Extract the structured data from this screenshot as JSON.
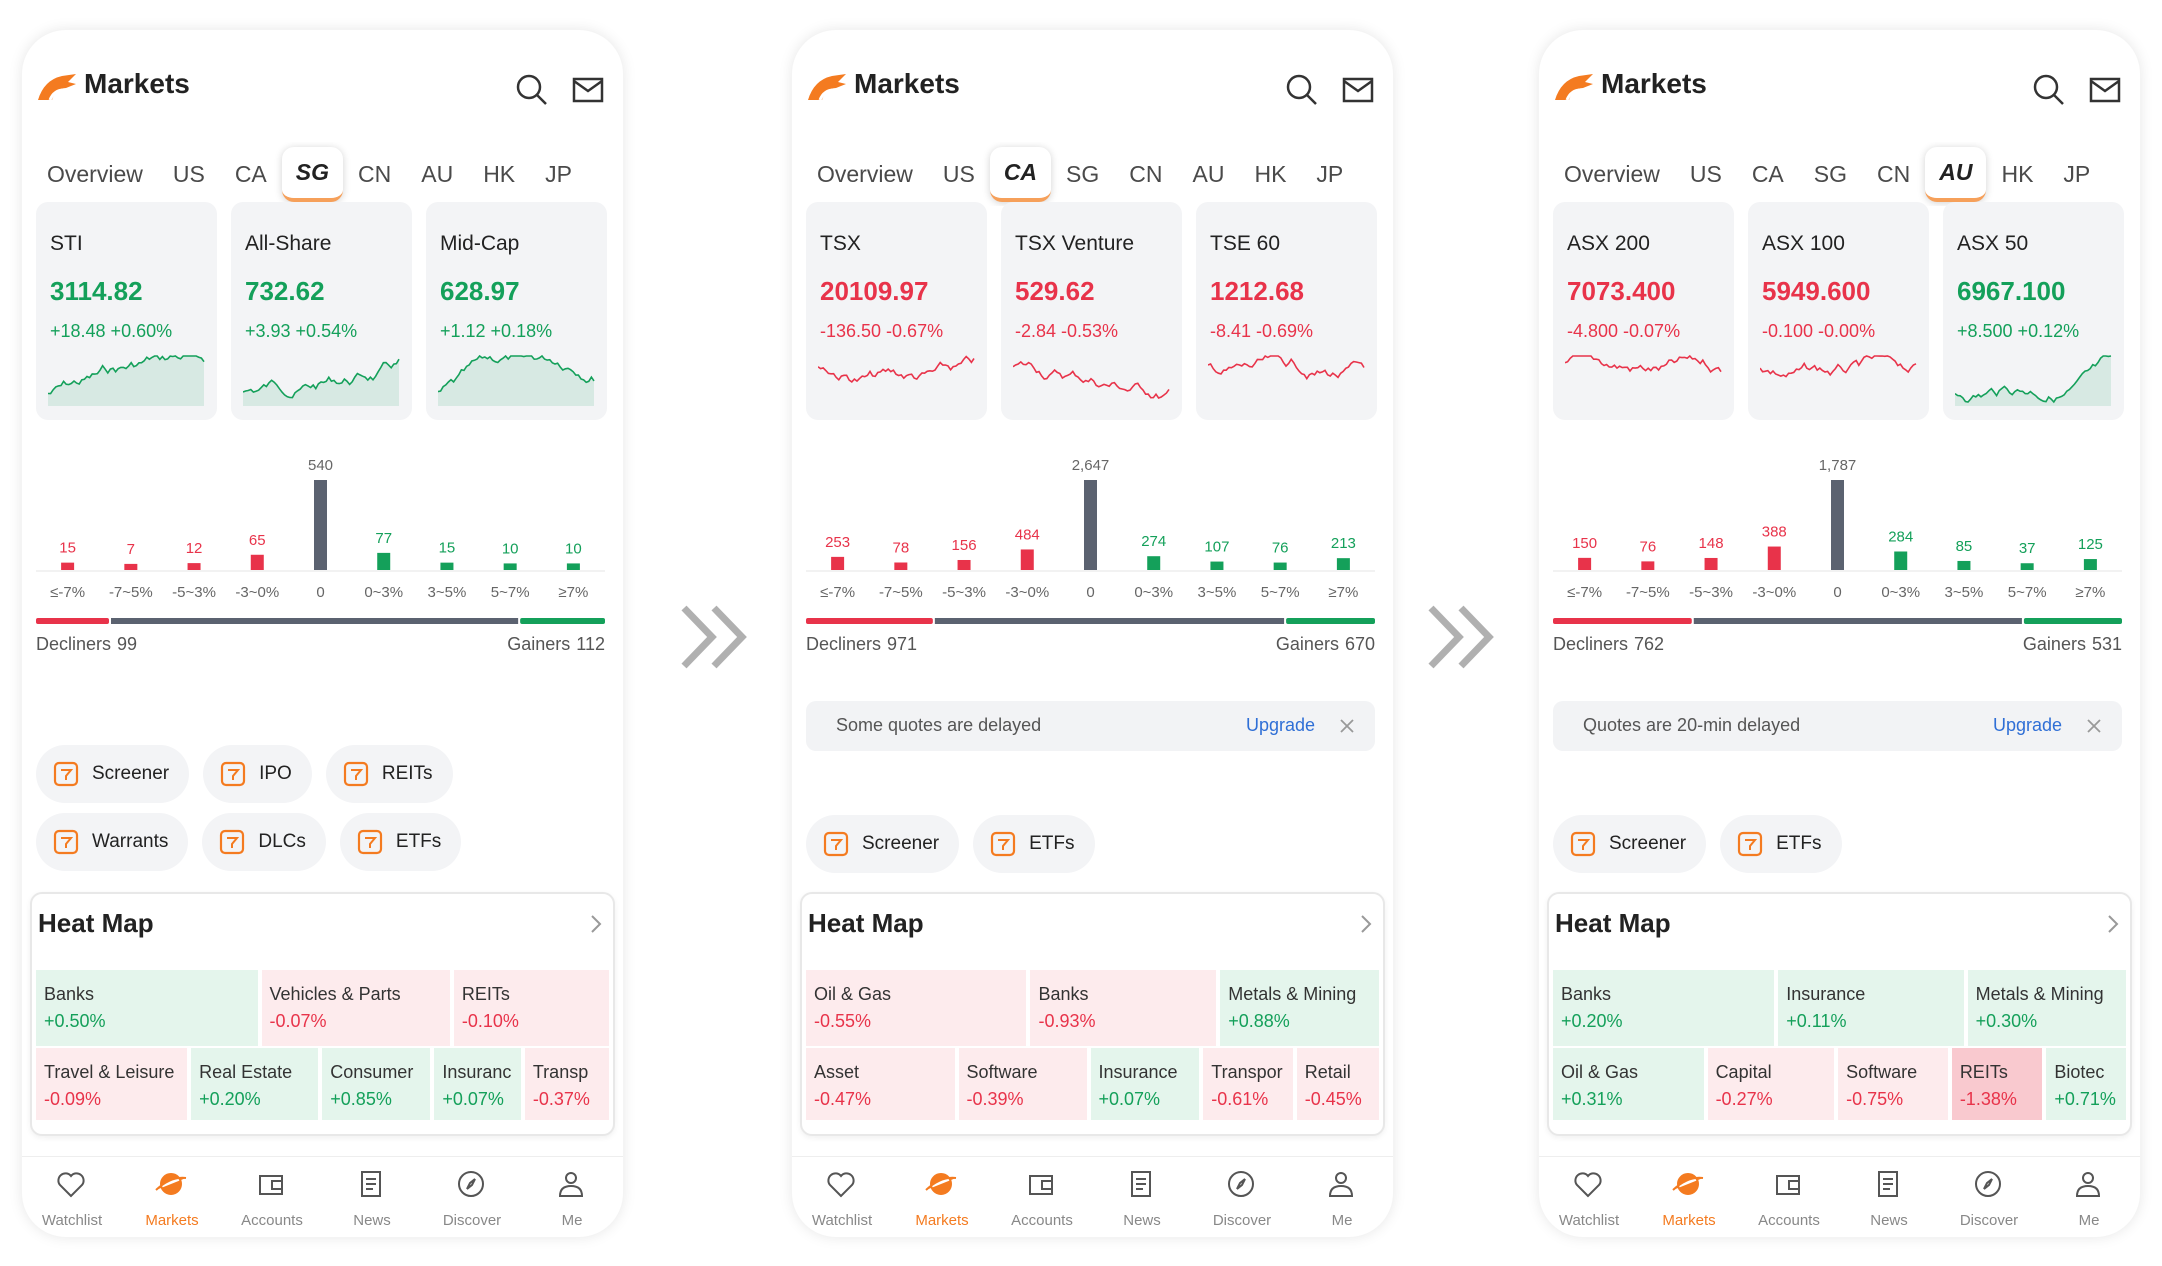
{
  "screens": [
    {
      "title": "Markets",
      "tabs": [
        "Overview",
        "US",
        "CA",
        "SG",
        "CN",
        "AU",
        "HK",
        "JP"
      ],
      "active_tab": 3,
      "indices": [
        {
          "name": "STI",
          "value": "3114.82",
          "change": "+18.48 +0.60%"
        },
        {
          "name": "All-Share",
          "value": "732.62",
          "change": "+3.93 +0.54%"
        },
        {
          "name": "Mid-Cap",
          "value": "628.97",
          "change": "+1.12 +0.18%"
        }
      ],
      "distribution": {
        "categories": [
          "≤-7%",
          "-7~5%",
          "-5~3%",
          "-3~0%",
          "0",
          "0~3%",
          "3~5%",
          "5~7%",
          "≥7%"
        ],
        "counts": [
          15,
          7,
          12,
          65,
          540,
          77,
          15,
          10,
          10
        ]
      },
      "decliners": {
        "label": "Decliners",
        "count": 99
      },
      "gainers": {
        "label": "Gainers",
        "count": 112
      },
      "tools": [
        "Screener",
        "IPO",
        "REITs",
        "Warrants",
        "DLCs",
        "ETFs"
      ],
      "heat_map": {
        "title": "Heat Map",
        "rows": [
          [
            {
              "name": "Banks",
              "change": "+0.50%"
            },
            {
              "name": "Vehicles & Parts",
              "change": "-0.07%"
            },
            {
              "name": "REITs",
              "change": "-0.10%"
            }
          ],
          [
            {
              "name": "Travel & Leisure",
              "change": "-0.09%"
            },
            {
              "name": "Real Estate",
              "change": "+0.20%"
            },
            {
              "name": "Consumer",
              "change": "+0.85%"
            },
            {
              "name": "Insuranc",
              "change": "+0.07%"
            },
            {
              "name": "Transp",
              "change": "-0.37%"
            }
          ]
        ]
      },
      "nav": [
        "Watchlist",
        "Markets",
        "Accounts",
        "News",
        "Discover",
        "Me"
      ],
      "active_nav": 1
    },
    {
      "title": "Markets",
      "tabs": [
        "Overview",
        "US",
        "CA",
        "SG",
        "CN",
        "AU",
        "HK",
        "JP"
      ],
      "active_tab": 2,
      "indices": [
        {
          "name": "TSX",
          "value": "20109.97",
          "change": "-136.50 -0.67%"
        },
        {
          "name": "TSX Venture",
          "value": "529.62",
          "change": "-2.84 -0.53%"
        },
        {
          "name": "TSE 60",
          "value": "1212.68",
          "change": "-8.41 -0.69%"
        }
      ],
      "distribution": {
        "categories": [
          "≤-7%",
          "-7~5%",
          "-5~3%",
          "-3~0%",
          "0",
          "0~3%",
          "3~5%",
          "5~7%",
          "≥7%"
        ],
        "counts": [
          253,
          78,
          156,
          484,
          {
            "value": 2647,
            "label": "2,647"
          },
          274,
          107,
          76,
          213
        ]
      },
      "decliners": {
        "label": "Decliners",
        "count": 971
      },
      "gainers": {
        "label": "Gainers",
        "count": 670
      },
      "notice": {
        "text": "Some quotes are delayed",
        "action": "Upgrade"
      },
      "tools": [
        "Screener",
        "ETFs"
      ],
      "heat_map": {
        "title": "Heat Map",
        "rows": [
          [
            {
              "name": "Oil & Gas",
              "change": "-0.55%"
            },
            {
              "name": "Banks",
              "change": "-0.93%"
            },
            {
              "name": "Metals & Mining",
              "change": "+0.88%"
            }
          ],
          [
            {
              "name": "Asset",
              "change": "-0.47%"
            },
            {
              "name": "Software",
              "change": "-0.39%"
            },
            {
              "name": "Insurance",
              "change": "+0.07%"
            },
            {
              "name": "Transpor",
              "change": "-0.61%"
            },
            {
              "name": "Retail",
              "change": "-0.45%"
            }
          ]
        ]
      },
      "nav": [
        "Watchlist",
        "Markets",
        "Accounts",
        "News",
        "Discover",
        "Me"
      ],
      "active_nav": 1
    },
    {
      "title": "Markets",
      "tabs": [
        "Overview",
        "US",
        "CA",
        "SG",
        "CN",
        "AU",
        "HK",
        "JP"
      ],
      "active_tab": 5,
      "indices": [
        {
          "name": "ASX 200",
          "value": "7073.400",
          "change": "-4.800 -0.07%"
        },
        {
          "name": "ASX 100",
          "value": "5949.600",
          "change": "-0.100 -0.00%"
        },
        {
          "name": "ASX 50",
          "value": "6967.100",
          "change": "+8.500 +0.12%"
        }
      ],
      "distribution": {
        "categories": [
          "≤-7%",
          "-7~5%",
          "-5~3%",
          "-3~0%",
          "0",
          "0~3%",
          "3~5%",
          "5~7%",
          "≥7%"
        ],
        "counts": [
          150,
          76,
          148,
          388,
          {
            "value": 1787,
            "label": "1,787"
          },
          284,
          85,
          37,
          125
        ]
      },
      "decliners": {
        "label": "Decliners",
        "count": 762
      },
      "gainers": {
        "label": "Gainers",
        "count": 531
      },
      "notice": {
        "text": "Quotes are 20-min delayed",
        "action": "Upgrade"
      },
      "tools": [
        "Screener",
        "ETFs"
      ],
      "heat_map": {
        "title": "Heat Map",
        "rows": [
          [
            {
              "name": "Banks",
              "change": "+0.20%"
            },
            {
              "name": "Insurance",
              "change": "+0.11%"
            },
            {
              "name": "Metals & Mining",
              "change": "+0.30%"
            }
          ],
          [
            {
              "name": "Oil & Gas",
              "change": "+0.31%"
            },
            {
              "name": "Capital",
              "change": "-0.27%"
            },
            {
              "name": "Software",
              "change": "-0.75%"
            },
            {
              "name": "REITs",
              "change": "-1.38%"
            },
            {
              "name": "Biotec",
              "change": "+0.71%"
            }
          ]
        ]
      },
      "nav": [
        "Watchlist",
        "Markets",
        "Accounts",
        "News",
        "Discover",
        "Me"
      ],
      "active_nav": 1
    }
  ]
}
